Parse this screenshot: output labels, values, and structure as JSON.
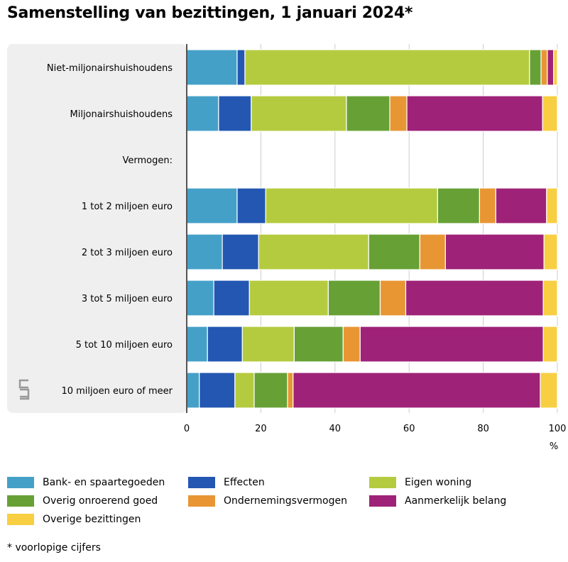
{
  "title": "Samenstelling van bezittingen, 1 januari 2024*",
  "footnote": "* voorlopige cijfers",
  "chart_data": {
    "type": "bar",
    "orientation": "horizontal",
    "stacked": true,
    "title": "Samenstelling van bezittingen, 1 januari 2024*",
    "xlabel": "%",
    "xlim": [
      0,
      100
    ],
    "xticks": [
      0,
      20,
      40,
      60,
      80,
      100
    ],
    "grid": true,
    "legend_position": "bottom",
    "categories": [
      "Niet-miljonairshuishoudens",
      "Miljonairshuishoudens",
      "Vermogen:",
      "1 tot 2 miljoen euro",
      "2 tot 3 miljoen euro",
      "3 tot 5 miljoen euro",
      "5 tot 10 miljoen euro",
      "10 miljoen euro of meer"
    ],
    "series": [
      {
        "name": "Bank- en spaartegoeden",
        "color": "#45a0c8",
        "values": [
          13.6,
          8.6,
          null,
          13.6,
          9.6,
          7.3,
          5.6,
          3.4
        ]
      },
      {
        "name": "Effecten",
        "color": "#2357b2",
        "values": [
          2.1,
          8.8,
          null,
          7.7,
          9.8,
          9.6,
          9.4,
          9.6
        ]
      },
      {
        "name": "Eigen woning",
        "color": "#b5cb3f",
        "values": [
          76.8,
          25.7,
          null,
          46.4,
          29.7,
          21.3,
          14.0,
          5.2
        ]
      },
      {
        "name": "Overig onroerend goed",
        "color": "#67a136",
        "values": [
          3.1,
          11.7,
          null,
          11.3,
          13.8,
          14.0,
          13.2,
          9.0
        ]
      },
      {
        "name": "Ondernemingsvermogen",
        "color": "#e89634",
        "values": [
          1.7,
          4.6,
          null,
          4.4,
          6.9,
          6.9,
          4.6,
          1.5
        ]
      },
      {
        "name": "Aanmerkelijk belang",
        "color": "#9e2278",
        "values": [
          1.7,
          36.6,
          null,
          13.7,
          26.6,
          37.1,
          49.4,
          66.7
        ]
      },
      {
        "name": "Overige bezittingen",
        "color": "#f8cf42",
        "values": [
          1.0,
          4.0,
          null,
          2.9,
          3.6,
          3.8,
          3.8,
          4.6
        ]
      }
    ]
  }
}
